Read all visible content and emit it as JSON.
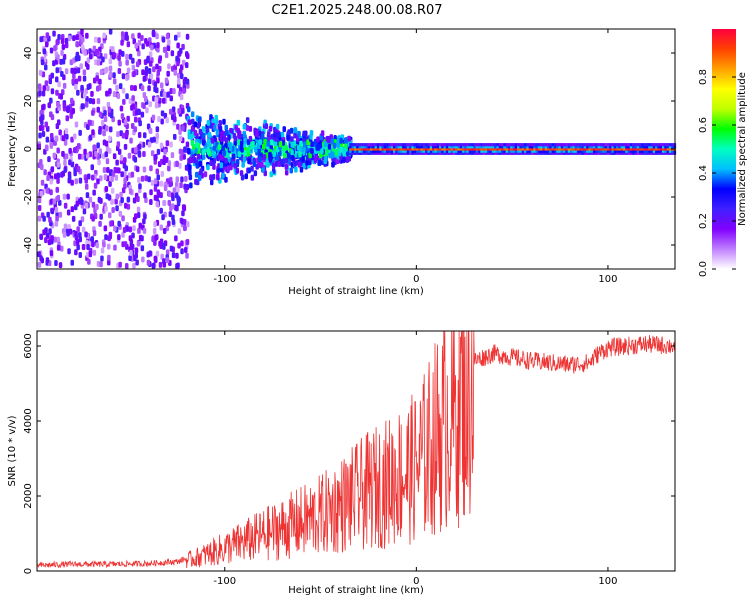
{
  "title": "C2E1.2025.248.00.08.R07",
  "chart_data": [
    {
      "type": "heatmap",
      "name": "spectrogram",
      "xlabel": "Height of straight line (km)",
      "ylabel": "Frequency (Hz)",
      "xlim": [
        -198,
        135
      ],
      "ylim": [
        -50,
        50
      ],
      "xticks": [
        -100,
        0,
        100
      ],
      "yticks": [
        -40,
        -20,
        0,
        20,
        40
      ],
      "colorbar": {
        "label": "Normalized spectral amplitude",
        "range": [
          0.0,
          1.0
        ],
        "ticks": [
          "0.0",
          "0.2",
          "0.4",
          "0.6",
          "0.8"
        ],
        "colormap": [
          "#ffffff",
          "#c080ff",
          "#8000ff",
          "#4020ff",
          "#0000ff",
          "#00c0ff",
          "#00ffc0",
          "#00ff00",
          "#c0ff00",
          "#ffff00",
          "#ffa000",
          "#ff4000",
          "#ff0040"
        ]
      },
      "description_regions": [
        {
          "x_from": -198,
          "x_to": -120,
          "freq_spread_hz": 50,
          "amplitude": [
            0.05,
            0.25
          ]
        },
        {
          "x_from": -120,
          "x_to": -35,
          "freq_spread_hz": 18,
          "amplitude": [
            0.15,
            0.45
          ]
        },
        {
          "x_from": -35,
          "x_to": 135,
          "freq_spread_hz": 2,
          "amplitude": [
            0.6,
            1.0
          ]
        }
      ]
    },
    {
      "type": "line",
      "name": "snr",
      "xlabel": "Height of straight line (km)",
      "ylabel": "SNR (10 * v/v)",
      "xlim": [
        -198,
        135
      ],
      "ylim": [
        0,
        6400
      ],
      "xticks": [
        -100,
        0,
        100
      ],
      "yticks": [
        0,
        2000,
        4000,
        6000
      ],
      "color": "#ee3333",
      "series": [
        {
          "name": "SNR",
          "x": [
            -198,
            -180,
            -160,
            -140,
            -125,
            -115,
            -100,
            -90,
            -80,
            -70,
            -60,
            -50,
            -40,
            -30,
            -20,
            -15,
            -10,
            -5,
            0,
            5,
            10,
            15,
            20,
            25,
            30,
            35,
            40,
            45,
            50,
            60,
            70,
            80,
            90,
            95,
            100,
            110,
            120,
            135
          ],
          "y": [
            150,
            180,
            180,
            200,
            250,
            400,
            700,
            900,
            1100,
            1300,
            1500,
            1700,
            2000,
            2300,
            2600,
            2700,
            2900,
            3000,
            3200,
            3600,
            4100,
            4500,
            5000,
            5400,
            5600,
            5700,
            5800,
            5750,
            5700,
            5600,
            5550,
            5500,
            5550,
            5800,
            5950,
            6000,
            6050,
            6000
          ]
        }
      ]
    }
  ]
}
